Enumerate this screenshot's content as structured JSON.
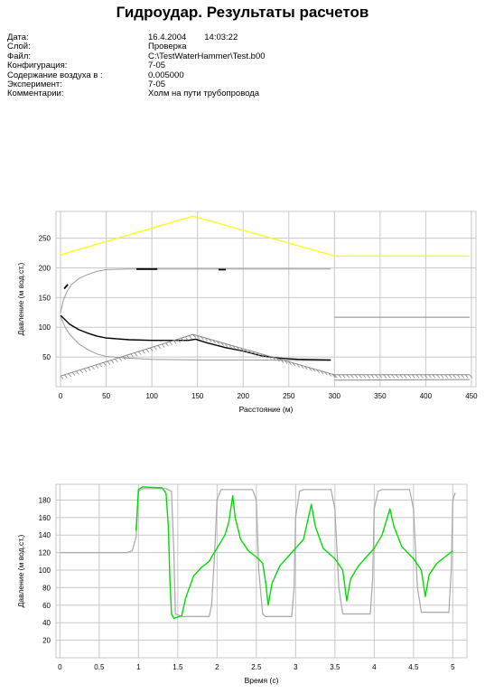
{
  "report": {
    "title": "Гидроудар. Результаты расчетов"
  },
  "info": [
    {
      "label": "Дата:",
      "value": "16.4.2004",
      "time": "14:03:22"
    },
    {
      "label": "Слой:",
      "value": "Проверка"
    },
    {
      "label": "Файл:",
      "value": "C:\\TestWaterHammer\\Test.b00"
    },
    {
      "label": "Конфигурация:",
      "value": "7-05"
    },
    {
      "label": "Содержание воздуха в :",
      "value": "0.005000"
    },
    {
      "label": "Эксперимент:",
      "value": "7-05"
    },
    {
      "label": "Комментарии:",
      "value": "Холм на пути трубопровода"
    }
  ],
  "chart_data": [
    {
      "type": "line",
      "title": "",
      "xlabel": "Расстояние (м)",
      "ylabel": "Давление (м вод.ст.)",
      "xlim": [
        -5,
        455
      ],
      "ylim": [
        0,
        295
      ],
      "xticks": [
        0,
        50,
        100,
        150,
        200,
        250,
        300,
        350,
        400,
        450
      ],
      "yticks": [
        50,
        100,
        150,
        200,
        250
      ],
      "grid": true,
      "series": [
        {
          "color": "#ffff00",
          "width": 1.2,
          "hatch": false,
          "points": [
            [
              0,
              222
            ],
            [
              145,
              287
            ],
            [
              298,
              221
            ],
            [
              300,
              220
            ],
            [
              448,
              220
            ]
          ]
        },
        {
          "color": "#9a9a9a",
          "width": 1,
          "hatch": false,
          "points": [
            [
              0,
              125
            ],
            [
              3,
              145
            ],
            [
              7,
              160
            ],
            [
              12,
              172
            ],
            [
              20,
              182
            ],
            [
              30,
              189
            ],
            [
              40,
              194
            ],
            [
              50,
              197
            ],
            [
              75,
              198
            ],
            [
              100,
              198
            ],
            [
              150,
              198
            ],
            [
              200,
              198
            ],
            [
              296,
              198
            ]
          ]
        },
        {
          "color": "#000000",
          "width": 1.8,
          "hatch": false,
          "points": [
            [
              4,
              165
            ],
            [
              8,
              172
            ]
          ]
        },
        {
          "color": "#000000",
          "width": 1.8,
          "hatch": false,
          "points": [
            [
              83,
              198
            ],
            [
              106,
              198
            ]
          ]
        },
        {
          "color": "#000000",
          "width": 1.8,
          "hatch": false,
          "points": [
            [
              173,
              197
            ],
            [
              181,
              197
            ]
          ]
        },
        {
          "color": "#9a9a9a",
          "width": 1,
          "hatch": false,
          "points": [
            [
              0,
              118
            ],
            [
              5,
              100
            ],
            [
              10,
              88
            ],
            [
              20,
              72
            ],
            [
              30,
              62
            ],
            [
              40,
              55
            ],
            [
              50,
              51
            ],
            [
              75,
              48
            ],
            [
              100,
              46
            ],
            [
              150,
              45
            ],
            [
              200,
              45
            ],
            [
              296,
              44
            ]
          ]
        },
        {
          "color": "#000000",
          "width": 1.4,
          "hatch": false,
          "points": [
            [
              0,
              120
            ],
            [
              10,
              105
            ],
            [
              20,
              96
            ],
            [
              30,
              90
            ],
            [
              40,
              85
            ],
            [
              50,
              82
            ],
            [
              75,
              79
            ],
            [
              100,
              78
            ],
            [
              140,
              78
            ],
            [
              148,
              80
            ],
            [
              160,
              74
            ],
            [
              180,
              66
            ],
            [
              200,
              60
            ],
            [
              220,
              52
            ],
            [
              240,
              48
            ],
            [
              260,
              46
            ],
            [
              296,
              45
            ]
          ]
        },
        {
          "color": "#888888",
          "width": 1,
          "hatch": false,
          "points": [
            [
              300,
              117
            ],
            [
              448,
              117
            ]
          ]
        },
        {
          "color": "#888888",
          "width": 1,
          "hatch": false,
          "points": [
            [
              300,
              11
            ],
            [
              448,
              12
            ]
          ]
        },
        {
          "color": "#888888",
          "width": 1,
          "hatch": true,
          "points": [
            [
              0,
              18
            ],
            [
              145,
              88
            ],
            [
              298,
              21
            ],
            [
              300,
              20
            ],
            [
              448,
              20
            ]
          ]
        }
      ]
    },
    {
      "type": "line",
      "title": "",
      "xlabel": "Время (с)",
      "ylabel": "Давление (м вод.ст.)",
      "xlim": [
        -0.05,
        5.18
      ],
      "ylim": [
        0,
        198
      ],
      "xticks": [
        0,
        0.5,
        1,
        1.5,
        2,
        2.5,
        3,
        3.5,
        4,
        4.5,
        5
      ],
      "yticks": [
        20,
        40,
        60,
        80,
        100,
        120,
        140,
        160,
        180
      ],
      "grid": true,
      "series": [
        {
          "color": "#a8a8a8",
          "width": 1.2,
          "hatch": false,
          "points": [
            [
              0,
              120
            ],
            [
              0.85,
              120
            ],
            [
              0.92,
              122
            ],
            [
              0.97,
              138
            ],
            [
              1.0,
              190
            ],
            [
              1.05,
              193
            ],
            [
              1.35,
              193
            ],
            [
              1.42,
              190
            ],
            [
              1.45,
              120
            ],
            [
              1.47,
              50
            ],
            [
              1.55,
              47
            ],
            [
              1.9,
              47
            ],
            [
              1.93,
              60
            ],
            [
              1.97,
              120
            ],
            [
              2.0,
              180
            ],
            [
              2.05,
              192
            ],
            [
              2.45,
              192
            ],
            [
              2.5,
              180
            ],
            [
              2.53,
              100
            ],
            [
              2.58,
              50
            ],
            [
              2.62,
              47
            ],
            [
              2.95,
              47
            ],
            [
              2.98,
              80
            ],
            [
              3.0,
              160
            ],
            [
              3.05,
              190
            ],
            [
              3.1,
              192
            ],
            [
              3.45,
              192
            ],
            [
              3.5,
              170
            ],
            [
              3.55,
              80
            ],
            [
              3.6,
              50
            ],
            [
              3.95,
              50
            ],
            [
              3.98,
              90
            ],
            [
              4.0,
              170
            ],
            [
              4.05,
              190
            ],
            [
              4.1,
              192
            ],
            [
              4.45,
              192
            ],
            [
              4.5,
              170
            ],
            [
              4.55,
              80
            ],
            [
              4.6,
              52
            ],
            [
              4.95,
              52
            ],
            [
              4.98,
              100
            ],
            [
              5.0,
              180
            ],
            [
              5.03,
              188
            ]
          ]
        },
        {
          "color": "#00dd00",
          "width": 1.4,
          "hatch": false,
          "points": [
            [
              0.97,
              145
            ],
            [
              1.0,
              192
            ],
            [
              1.05,
              195
            ],
            [
              1.3,
              194
            ],
            [
              1.35,
              188
            ],
            [
              1.38,
              150
            ],
            [
              1.4,
              90
            ],
            [
              1.42,
              50
            ],
            [
              1.45,
              45
            ],
            [
              1.55,
              48
            ],
            [
              1.6,
              68
            ],
            [
              1.7,
              93
            ],
            [
              1.8,
              103
            ],
            [
              1.9,
              110
            ],
            [
              1.95,
              118
            ],
            [
              2.0,
              125
            ],
            [
              2.1,
              140
            ],
            [
              2.15,
              155
            ],
            [
              2.2,
              185
            ],
            [
              2.23,
              160
            ],
            [
              2.3,
              135
            ],
            [
              2.4,
              122
            ],
            [
              2.5,
              115
            ],
            [
              2.58,
              108
            ],
            [
              2.62,
              85
            ],
            [
              2.65,
              60
            ],
            [
              2.7,
              85
            ],
            [
              2.8,
              105
            ],
            [
              2.9,
              115
            ],
            [
              3.0,
              125
            ],
            [
              3.1,
              135
            ],
            [
              3.2,
              175
            ],
            [
              3.25,
              150
            ],
            [
              3.35,
              125
            ],
            [
              3.5,
              113
            ],
            [
              3.6,
              100
            ],
            [
              3.65,
              65
            ],
            [
              3.7,
              90
            ],
            [
              3.8,
              105
            ],
            [
              3.9,
              115
            ],
            [
              4.0,
              125
            ],
            [
              4.1,
              140
            ],
            [
              4.2,
              170
            ],
            [
              4.25,
              150
            ],
            [
              4.35,
              127
            ],
            [
              4.5,
              113
            ],
            [
              4.6,
              100
            ],
            [
              4.65,
              70
            ],
            [
              4.7,
              95
            ],
            [
              4.8,
              108
            ],
            [
              4.9,
              115
            ],
            [
              5.0,
              122
            ]
          ]
        }
      ]
    }
  ]
}
